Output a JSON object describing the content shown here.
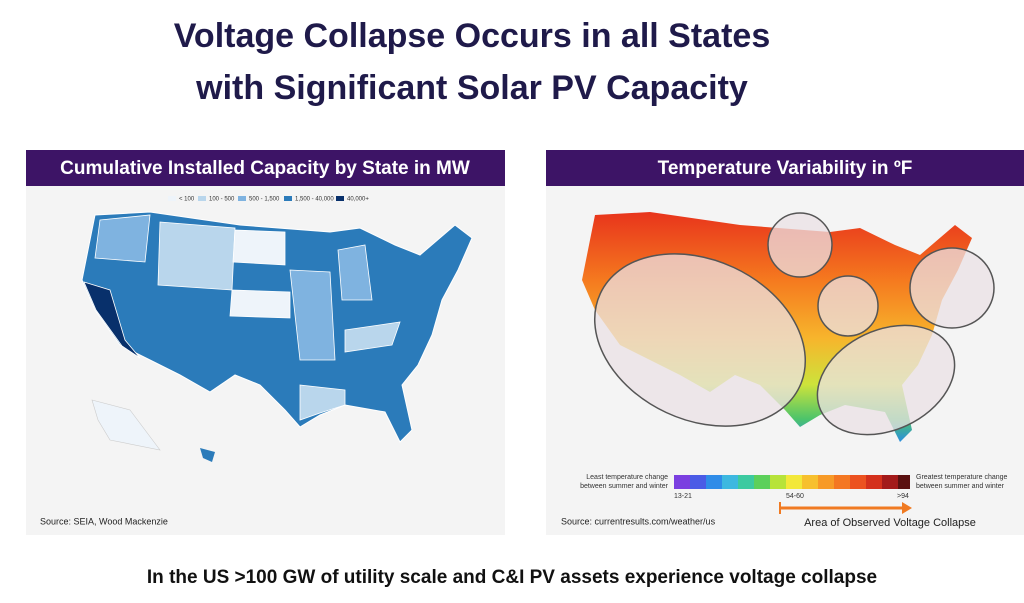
{
  "title": {
    "lines": [
      "Voltage Collapse Occurs in all States",
      "with Significant Solar PV Capacity"
    ]
  },
  "left_panel": {
    "header": "Cumulative Installed Capacity by State in MW",
    "legend": [
      "< 100",
      "100 - 500",
      "500 - 1,500",
      "1,500 - 40,000",
      "40,000+"
    ],
    "source": "Source: SEIA, Wood Mackenzie"
  },
  "right_panel": {
    "header": "Temperature Variability in ºF",
    "legend_left": [
      "Least temperature change",
      "between summer and winter"
    ],
    "legend_right": [
      "Greatest temperature change",
      "between summer and winter"
    ],
    "scale_labels": [
      "13-21",
      "54-60",
      ">94"
    ],
    "source": "Source: currentresults.com/weather/us",
    "annotation": "Area of Observed Voltage Collapse"
  },
  "footer": "In the US >100 GW of utility scale and C&I PV assets experience voltage collapse"
}
